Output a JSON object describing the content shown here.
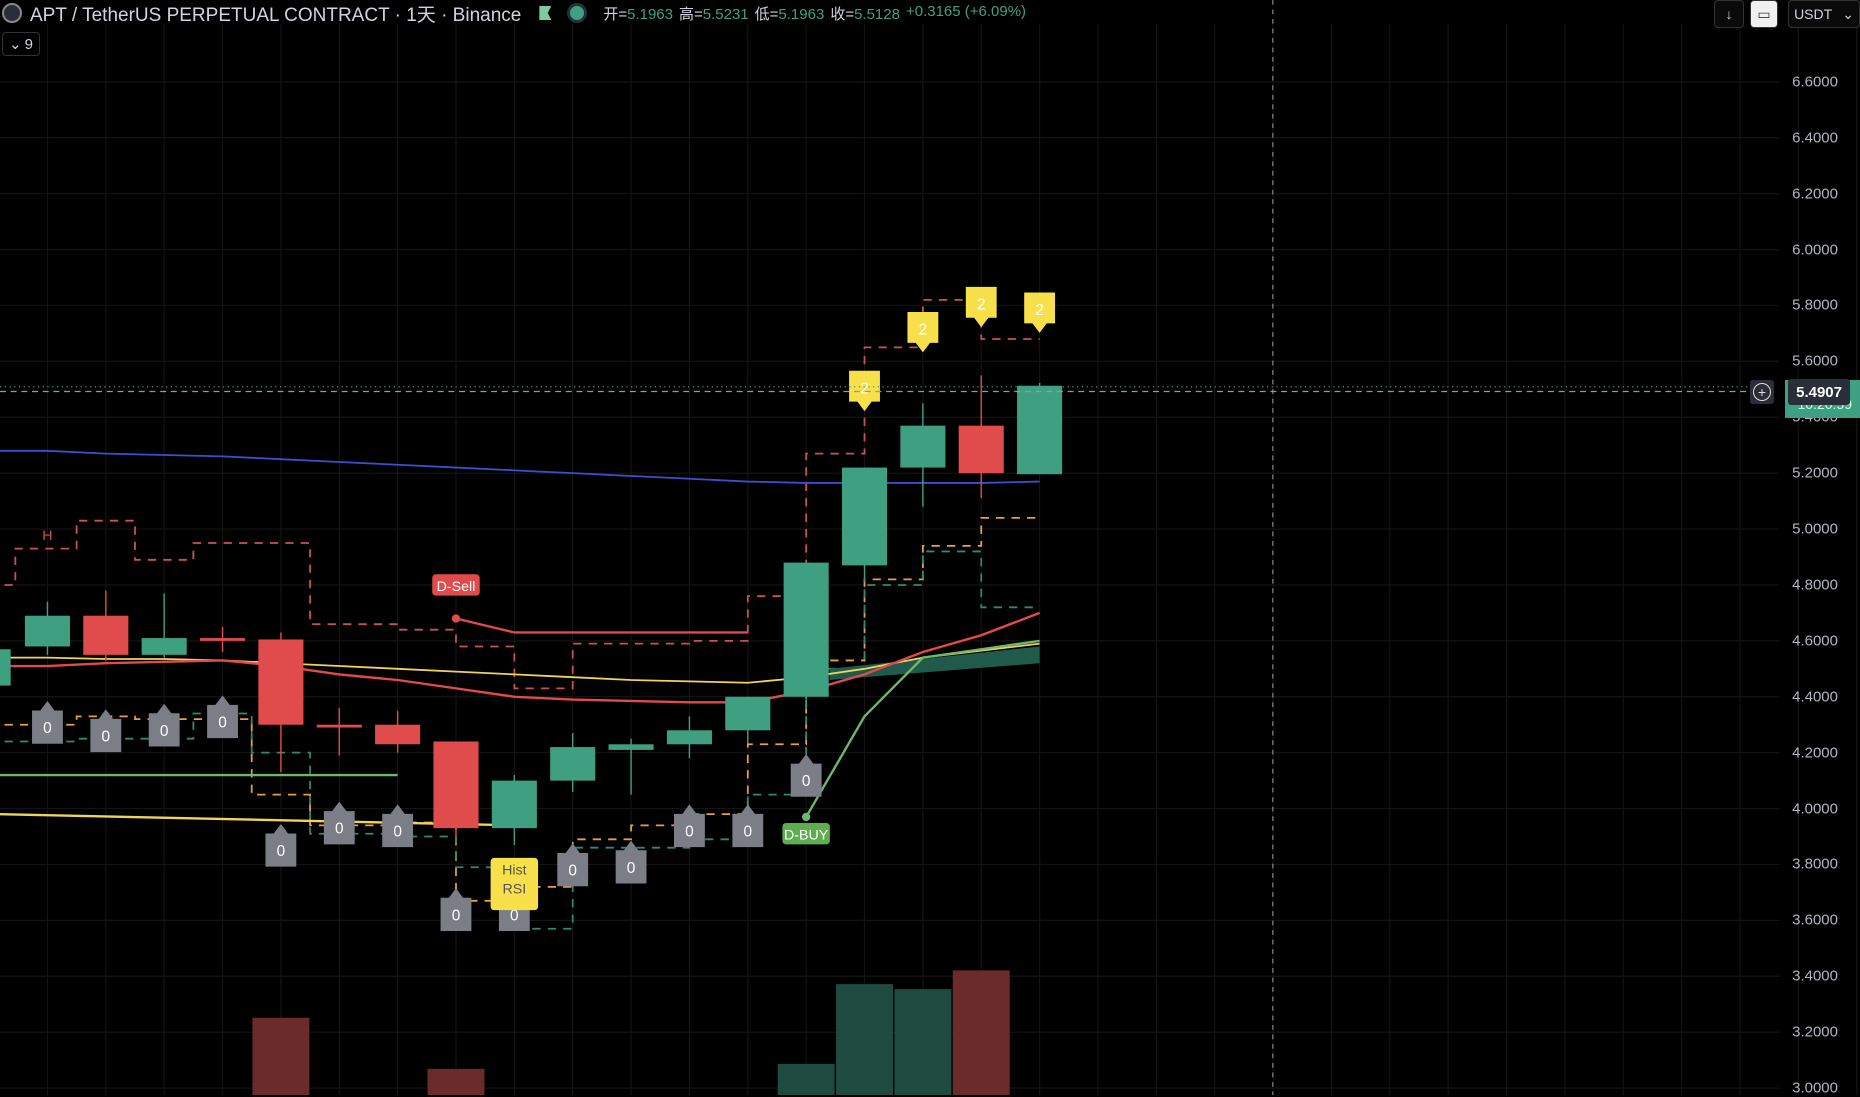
{
  "header": {
    "symbol_title": "APT / TetherUS PERPETUAL CONTRACT · 1天 · Binance",
    "ohlc": [
      {
        "label": "开=",
        "value": "5.1963"
      },
      {
        "label": "高=",
        "value": "5.5231"
      },
      {
        "label": "低=",
        "value": "5.1963"
      },
      {
        "label": "收=",
        "value": "5.5128"
      }
    ],
    "change": "+0.3165 (+6.09%)",
    "indicator_count": "9"
  },
  "toolbar": {
    "currency": "USDT",
    "download_icon": "arrow-down-icon",
    "fullscreen_icon": "screen-icon"
  },
  "price_axis": {
    "ticks": [
      "6.6000",
      "6.4000",
      "6.2000",
      "6.0000",
      "5.8000",
      "5.6000",
      "5.4000",
      "5.2000",
      "5.0000",
      "4.8000",
      "4.6000",
      "4.4000",
      "4.2000",
      "4.0000",
      "3.8000",
      "3.6000",
      "3.4000",
      "3.2000",
      "3.0000"
    ],
    "crosshair_price": "5.4907",
    "countdown": "10:20:59",
    "last_price_color": "#3fa081"
  },
  "colors": {
    "up": "#3fa081",
    "down": "#e04b4b",
    "ma_blue": "#3b4fd1",
    "ma_red": "#e04b4b",
    "ma_yellow": "#f0d35a",
    "ma_green": "#6db86a",
    "signal_yellow": "#f7e04a",
    "marker_gray": "#7b7e87"
  },
  "chart_data": {
    "type": "candlestick",
    "ylim": [
      3.0,
      6.6
    ],
    "candles": [
      {
        "o": 4.58,
        "h": 4.74,
        "l": 4.55,
        "c": 4.69
      },
      {
        "o": 4.69,
        "h": 4.78,
        "l": 4.53,
        "c": 4.55
      },
      {
        "o": 4.55,
        "h": 4.77,
        "l": 4.54,
        "c": 4.61
      },
      {
        "o": 4.61,
        "h": 4.65,
        "l": 4.56,
        "c": 4.6
      },
      {
        "o": 4.605,
        "h": 4.63,
        "l": 4.13,
        "c": 4.3
      },
      {
        "o": 4.3,
        "h": 4.36,
        "l": 4.19,
        "c": 4.29
      },
      {
        "o": 4.3,
        "h": 4.35,
        "l": 4.2,
        "c": 4.23
      },
      {
        "o": 4.24,
        "h": 4.24,
        "l": 3.9,
        "c": 3.93
      },
      {
        "o": 3.93,
        "h": 4.12,
        "l": 3.87,
        "c": 4.1
      },
      {
        "o": 4.1,
        "h": 4.27,
        "l": 4.06,
        "c": 4.22
      },
      {
        "o": 4.21,
        "h": 4.25,
        "l": 4.05,
        "c": 4.23
      },
      {
        "o": 4.23,
        "h": 4.33,
        "l": 4.18,
        "c": 4.28
      },
      {
        "o": 4.28,
        "h": 4.4,
        "l": 4.23,
        "c": 4.4
      },
      {
        "o": 4.4,
        "h": 4.88,
        "l": 4.36,
        "c": 4.88
      },
      {
        "o": 4.87,
        "h": 5.22,
        "l": 4.81,
        "c": 5.22
      },
      {
        "o": 5.22,
        "h": 5.45,
        "l": 5.08,
        "c": 5.37
      },
      {
        "o": 5.37,
        "h": 5.55,
        "l": 5.11,
        "c": 5.2
      },
      {
        "o": 5.1963,
        "h": 5.5231,
        "l": 5.1963,
        "c": 5.5128
      }
    ],
    "volume_relative": [
      0,
      0,
      0,
      0,
      0.62,
      0,
      0,
      0.21,
      0,
      0,
      0,
      0,
      0,
      0.25,
      0.89,
      0.85,
      1.0,
      0
    ],
    "ma_blue": [
      5.28,
      5.27,
      5.265,
      5.26,
      5.25,
      5.24,
      5.23,
      5.22,
      5.21,
      5.2,
      5.19,
      5.18,
      5.17,
      5.165,
      5.165,
      5.165,
      5.165,
      5.17
    ],
    "ma_yellow": [
      4.54,
      4.535,
      4.535,
      4.53,
      4.52,
      4.51,
      4.5,
      4.49,
      4.48,
      4.47,
      4.46,
      4.455,
      4.45,
      4.47,
      4.5,
      4.54,
      4.565,
      4.59
    ],
    "ma_red": [
      4.51,
      4.52,
      4.525,
      4.53,
      4.51,
      4.48,
      4.46,
      4.43,
      4.4,
      4.39,
      4.385,
      4.38,
      4.38,
      4.42,
      4.48,
      4.56,
      4.62,
      4.7
    ],
    "ma_green_signal": {
      "from_index": 13,
      "values": [
        3.97,
        4.33,
        4.54,
        4.57,
        4.6
      ]
    },
    "dsell_line": {
      "from_index": 7,
      "values": [
        4.68,
        4.63,
        4.63,
        4.63,
        4.63,
        4.63
      ]
    },
    "support_green": {
      "to_index": 6,
      "value": 4.12
    },
    "support_yellow": {
      "to_index": 8,
      "values": [
        3.98,
        3.94
      ]
    },
    "labels": [
      {
        "text": "0",
        "index": 0,
        "price": 4.3,
        "kind": "gray"
      },
      {
        "text": "0",
        "index": 1,
        "price": 4.27,
        "kind": "gray"
      },
      {
        "text": "0",
        "index": 2,
        "price": 4.29,
        "kind": "gray"
      },
      {
        "text": "0",
        "index": 3,
        "price": 4.32,
        "kind": "gray"
      },
      {
        "text": "0",
        "index": 4,
        "price": 3.86,
        "kind": "gray"
      },
      {
        "text": "0",
        "index": 5,
        "price": 3.94,
        "kind": "gray"
      },
      {
        "text": "0",
        "index": 6,
        "price": 3.93,
        "kind": "gray"
      },
      {
        "text": "0",
        "index": 7,
        "price": 3.63,
        "kind": "gray"
      },
      {
        "text": "0",
        "index": 8,
        "price": 3.63,
        "kind": "gray"
      },
      {
        "text": "0",
        "index": 9,
        "price": 3.79,
        "kind": "gray"
      },
      {
        "text": "0",
        "index": 10,
        "price": 3.8,
        "kind": "gray"
      },
      {
        "text": "0",
        "index": 11,
        "price": 3.93,
        "kind": "gray"
      },
      {
        "text": "0",
        "index": 12,
        "price": 3.93,
        "kind": "gray"
      },
      {
        "text": "0",
        "index": 13,
        "price": 4.11,
        "kind": "gray"
      },
      {
        "text": "2",
        "index": 14,
        "price": 5.49,
        "kind": "yellow"
      },
      {
        "text": "2",
        "index": 15,
        "price": 5.7,
        "kind": "yellow"
      },
      {
        "text": "2",
        "index": 16,
        "price": 5.79,
        "kind": "yellow"
      },
      {
        "text": "2",
        "index": 17,
        "price": 5.77,
        "kind": "yellow"
      }
    ],
    "signals": [
      {
        "text": "D-Sell",
        "index": 7,
        "price": 4.8,
        "color": "#e04b4b"
      },
      {
        "text": "D-BUY",
        "index": 13,
        "price": 3.91,
        "color": "#5cae4f"
      },
      {
        "text": "H",
        "index": 0,
        "price": 4.96,
        "color": "#c9525a"
      },
      {
        "text": "Hist\nRSI",
        "index": 8,
        "price": 3.73,
        "color": "#f7e04a"
      }
    ]
  }
}
